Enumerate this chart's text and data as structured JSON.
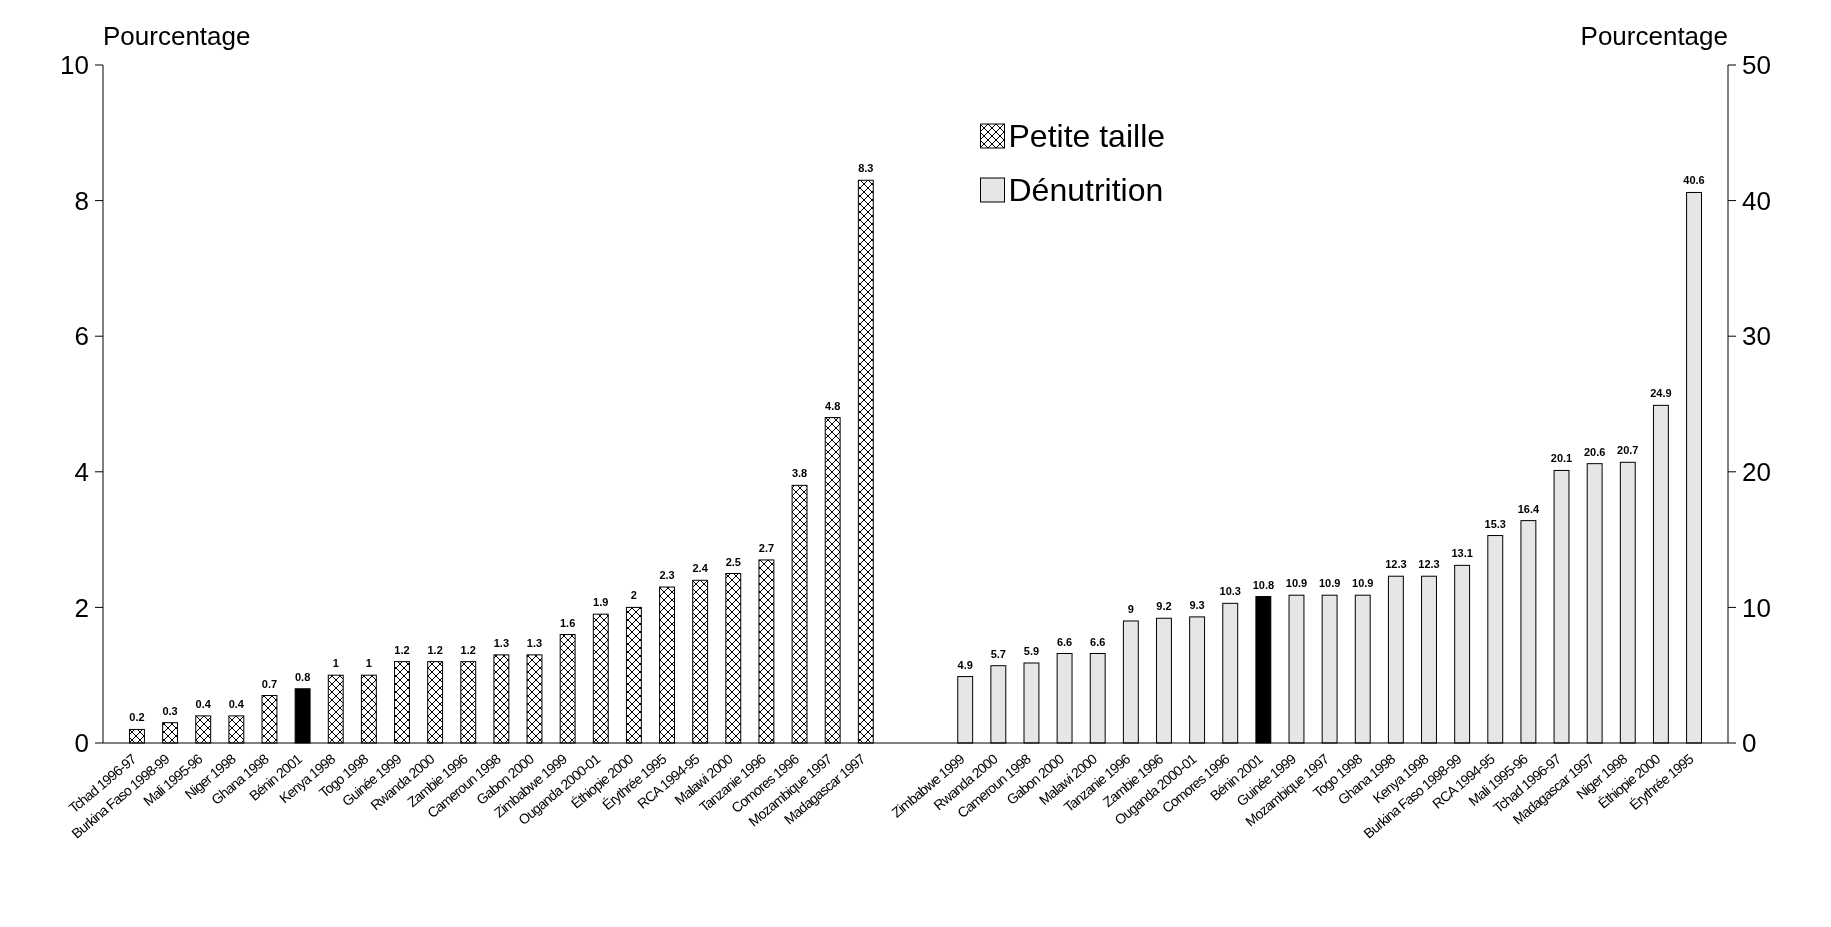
{
  "chart_data": {
    "type": "bar",
    "ylabel": "Pourcentage",
    "y2label": "Pourcentage",
    "categories": [
      "Tchad 1996-97",
      "Burkina Faso 1998-99",
      "Mali 1995-96",
      "Niger 1998",
      "Ghana 1998",
      "Bénin 2001",
      "Kenya 1998",
      "Togo 1998",
      "Guinée 1999",
      "Rwanda 2000",
      "Zambie 1996",
      "Cameroun 1998",
      "Gabon 2000",
      "Zimbabwe 1999",
      "Ouganda 2000-01",
      "Éthiopie 2000",
      "Érythrée 1995",
      "RCA 1994-95",
      "Malawi 2000",
      "Tanzanie 1996",
      "Comores 1996",
      "Mozambique 1997",
      "Madagascar 1997",
      null,
      null,
      "Zimbabwe 1999",
      "Rwanda 2000",
      "Cameroun 1998",
      "Gabon 2000",
      "Malawi 2000",
      "Tanzanie 1996",
      "Zambie 1996",
      "Ouganda 2000-01",
      "Comores 1996",
      "Bénin 2001",
      "Guinée 1999",
      "Mozambique 1997",
      "Togo 1998",
      "Ghana 1998",
      "Kenya 1998",
      "Burkina Faso 1998-99",
      "RCA 1994-95",
      "Mali 1995-96",
      "Tchad 1996-97",
      "Madagascar 1997",
      "Niger 1998",
      "Éthiopie 2000",
      "Érythrée 1995"
    ],
    "series": [
      {
        "name": "Petite taille",
        "color": "#000000",
        "colors": [
          null,
          null,
          null,
          null,
          null,
          "#000000",
          null,
          null,
          null,
          null,
          null,
          null,
          null,
          null,
          null,
          null,
          null,
          null,
          null,
          null,
          null,
          null,
          null,
          null,
          null,
          null,
          null,
          null,
          null,
          null,
          null,
          null,
          null,
          null,
          null,
          null,
          null,
          null,
          null,
          null,
          null,
          null,
          null,
          null,
          null,
          null,
          null,
          null
        ],
        "values": [
          0.2,
          0.3,
          0.4,
          0.4,
          0.7,
          0.8,
          1,
          1,
          1.2,
          1.2,
          1.2,
          1.3,
          1.3,
          1.6,
          1.9,
          2,
          2.3,
          2.4,
          2.5,
          2.7,
          3.8,
          4.8,
          8.3,
          null,
          null,
          null,
          null,
          null,
          null,
          null,
          null,
          null,
          null,
          null,
          null,
          null,
          null,
          null,
          null,
          null,
          null,
          null,
          null,
          null,
          null,
          null,
          null,
          null
        ]
      },
      {
        "name": "Dénutrition",
        "color": "#e6e6e6",
        "axis": "y2",
        "colors": [
          null,
          null,
          null,
          null,
          null,
          null,
          null,
          null,
          null,
          null,
          null,
          null,
          null,
          null,
          null,
          null,
          null,
          null,
          null,
          null,
          null,
          null,
          null,
          null,
          null,
          "#e6e6e6",
          "#e6e6e6",
          "#e6e6e6",
          "#e6e6e6",
          "#e6e6e6",
          "#e6e6e6",
          "#e6e6e6",
          "#e6e6e6",
          "#e6e6e6",
          "#000000",
          "#e6e6e6",
          "#e6e6e6",
          "#e6e6e6",
          "#e6e6e6",
          "#e6e6e6",
          "#e6e6e6",
          "#e6e6e6",
          "#e6e6e6",
          "#e6e6e6",
          "#e6e6e6",
          "#e6e6e6",
          "#e6e6e6",
          "#e6e6e6"
        ],
        "values": [
          null,
          null,
          null,
          null,
          null,
          null,
          null,
          null,
          null,
          null,
          null,
          null,
          null,
          null,
          null,
          null,
          null,
          null,
          null,
          null,
          null,
          null,
          null,
          null,
          null,
          4.9,
          5.7,
          5.9,
          6.6,
          6.6,
          9,
          9.2,
          9.3,
          10.3,
          10.8,
          10.9,
          10.9,
          10.9,
          12.3,
          12.3,
          13.1,
          15.3,
          16.4,
          20.1,
          20.6,
          20.7,
          24.9,
          40.6
        ]
      }
    ],
    "ylim": [
      0,
      10
    ],
    "yticks": [
      0,
      2,
      4,
      6,
      8,
      10
    ],
    "y2lim": [
      0,
      50
    ],
    "y2ticks": [
      0,
      10,
      20,
      30,
      40,
      50
    ],
    "data_labels": true,
    "legend": "top",
    "grid": false
  }
}
